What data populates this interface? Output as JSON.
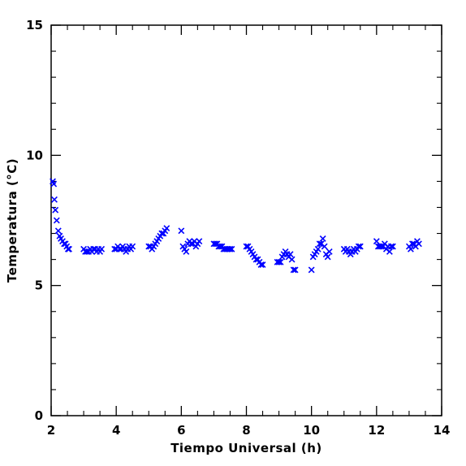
{
  "chart_data": {
    "type": "scatter",
    "title": "",
    "xlabel": "Tiempo Universal (h)",
    "ylabel": "Temperatura (°C)",
    "xlim": [
      2,
      14
    ],
    "ylim": [
      0,
      15
    ],
    "xticks": [
      2,
      4,
      6,
      8,
      10,
      12,
      14
    ],
    "xtick_labels": [
      "2",
      "4",
      "6",
      "8",
      "10",
      "12",
      "14"
    ],
    "yticks": [
      0,
      5,
      10,
      15
    ],
    "ytick_labels": [
      "0",
      "5",
      "10",
      "15"
    ],
    "grid": false,
    "legend": "none",
    "marker": "x",
    "marker_color": "#0000ff",
    "series": [
      {
        "x": [
          2.05,
          2.08,
          2.1,
          2.13,
          2.17,
          2.22,
          2.26,
          2.3,
          2.35,
          2.4,
          2.44,
          2.48,
          2.52,
          2.55,
          3.0,
          3.05,
          3.1,
          3.15,
          3.2,
          3.25,
          3.3,
          3.35,
          3.4,
          3.45,
          3.5,
          3.55,
          3.95,
          4.0,
          4.05,
          4.1,
          4.15,
          4.2,
          4.25,
          4.3,
          4.35,
          4.4,
          4.45,
          4.5,
          5.0,
          5.05,
          5.1,
          5.15,
          5.2,
          5.25,
          5.3,
          5.35,
          5.4,
          5.45,
          5.5,
          5.55,
          6.0,
          6.05,
          6.1,
          6.15,
          6.2,
          6.25,
          6.3,
          6.35,
          6.4,
          6.45,
          6.5,
          6.55,
          7.0,
          7.05,
          7.1,
          7.15,
          7.2,
          7.25,
          7.3,
          7.35,
          7.4,
          7.45,
          7.5,
          7.55,
          8.0,
          8.05,
          8.1,
          8.15,
          8.2,
          8.25,
          8.3,
          8.35,
          8.4,
          8.45,
          8.5,
          8.95,
          9.0,
          9.05,
          9.1,
          9.15,
          9.2,
          9.25,
          9.3,
          9.35,
          9.4,
          9.45,
          9.5,
          10.0,
          10.05,
          10.1,
          10.15,
          10.2,
          10.25,
          10.3,
          10.35,
          10.4,
          10.45,
          10.5,
          10.55,
          11.0,
          11.05,
          11.1,
          11.15,
          11.2,
          11.25,
          11.3,
          11.35,
          11.4,
          11.45,
          11.5,
          12.0,
          12.05,
          12.1,
          12.15,
          12.2,
          12.25,
          12.3,
          12.35,
          12.4,
          12.45,
          12.5,
          13.0,
          13.05,
          13.1,
          13.15,
          13.2,
          13.25,
          13.3
        ],
        "y": [
          9.0,
          8.9,
          8.3,
          7.9,
          7.5,
          7.1,
          6.9,
          6.8,
          6.7,
          6.6,
          6.6,
          6.5,
          6.4,
          6.4,
          6.4,
          6.3,
          6.3,
          6.3,
          6.4,
          6.3,
          6.4,
          6.4,
          6.3,
          6.4,
          6.3,
          6.4,
          6.4,
          6.4,
          6.5,
          6.4,
          6.4,
          6.5,
          6.4,
          6.3,
          6.4,
          6.5,
          6.4,
          6.5,
          6.5,
          6.5,
          6.4,
          6.5,
          6.6,
          6.7,
          6.8,
          6.9,
          7.0,
          7.0,
          7.1,
          7.2,
          7.1,
          6.5,
          6.4,
          6.3,
          6.6,
          6.7,
          6.6,
          6.6,
          6.7,
          6.5,
          6.6,
          6.7,
          6.6,
          6.6,
          6.6,
          6.5,
          6.5,
          6.5,
          6.4,
          6.4,
          6.4,
          6.4,
          6.4,
          6.4,
          6.5,
          6.5,
          6.4,
          6.3,
          6.2,
          6.1,
          6.0,
          6.0,
          5.9,
          5.8,
          5.8,
          5.9,
          5.9,
          5.9,
          6.1,
          6.2,
          6.3,
          6.2,
          6.1,
          6.2,
          6.0,
          5.6,
          5.6,
          5.6,
          6.1,
          6.2,
          6.3,
          6.4,
          6.6,
          6.6,
          6.8,
          6.5,
          6.2,
          6.1,
          6.3,
          6.4,
          6.3,
          6.4,
          6.3,
          6.2,
          6.3,
          6.4,
          6.3,
          6.4,
          6.5,
          6.5,
          6.7,
          6.5,
          6.5,
          6.5,
          6.5,
          6.6,
          6.4,
          6.5,
          6.3,
          6.5,
          6.5,
          6.5,
          6.4,
          6.6,
          6.6,
          6.5,
          6.7,
          6.6
        ]
      }
    ]
  }
}
